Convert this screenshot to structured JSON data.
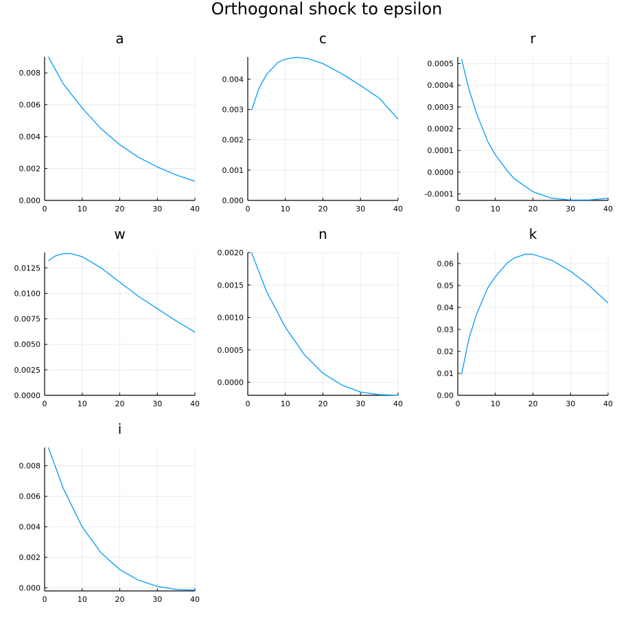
{
  "title": "Orthogonal shock to epsilon",
  "colors": {
    "line": "#009af9",
    "grid": "#e6e6e6",
    "axis": "#000000"
  },
  "chart_data": [
    {
      "type": "line",
      "title": "a",
      "grid": true,
      "xlim": [
        0,
        40
      ],
      "ylim": [
        0,
        0.009
      ],
      "xticks": [
        0,
        10,
        20,
        30,
        40
      ],
      "xtick_labels": [
        "0",
        "10",
        "20",
        "30",
        "40"
      ],
      "yticks": [
        0,
        0.002,
        0.004,
        0.006,
        0.008
      ],
      "ytick_labels": [
        "0.000",
        "0.002",
        "0.004",
        "0.006",
        "0.008"
      ],
      "x": [
        1,
        5,
        10,
        15,
        20,
        25,
        30,
        35,
        40
      ],
      "y": [
        0.009,
        0.0073,
        0.0058,
        0.0045,
        0.0035,
        0.0027,
        0.0021,
        0.0016,
        0.0012
      ]
    },
    {
      "type": "line",
      "title": "c",
      "grid": true,
      "xlim": [
        0,
        40
      ],
      "ylim": [
        0,
        0.00473
      ],
      "xticks": [
        0,
        10,
        20,
        30,
        40
      ],
      "xtick_labels": [
        "0",
        "10",
        "20",
        "30",
        "40"
      ],
      "yticks": [
        0,
        0.001,
        0.002,
        0.003,
        0.004
      ],
      "ytick_labels": [
        "0.000",
        "0.001",
        "0.002",
        "0.003",
        "0.004"
      ],
      "x": [
        1,
        3,
        5,
        8,
        10,
        13,
        16,
        20,
        25,
        30,
        35,
        40
      ],
      "y": [
        0.00297,
        0.0037,
        0.00415,
        0.00455,
        0.00466,
        0.00472,
        0.00468,
        0.00451,
        0.00418,
        0.00379,
        0.00337,
        0.00268
      ]
    },
    {
      "type": "line",
      "title": "r",
      "grid": true,
      "xlim": [
        0,
        40
      ],
      "ylim": [
        -0.00013,
        0.00053
      ],
      "xticks": [
        0,
        10,
        20,
        30,
        40
      ],
      "xtick_labels": [
        "0",
        "10",
        "20",
        "30",
        "40"
      ],
      "yticks": [
        -0.0001,
        0,
        0.0001,
        0.0002,
        0.0003,
        0.0004,
        0.0005
      ],
      "ytick_labels": [
        "-0.0001",
        "0.0000",
        "0.0001",
        "0.0002",
        "0.0003",
        "0.0004",
        "0.0005"
      ],
      "x": [
        1,
        3,
        5,
        8,
        10,
        13,
        15,
        20,
        25,
        30,
        35,
        40
      ],
      "y": [
        0.00052,
        0.00038,
        0.00027,
        0.00014,
        8e-05,
        1e-05,
        -3e-05,
        -9e-05,
        -0.00012,
        -0.000128,
        -0.000128,
        -0.00012
      ]
    },
    {
      "type": "line",
      "title": "w",
      "grid": true,
      "xlim": [
        0,
        40
      ],
      "ylim": [
        0,
        0.014
      ],
      "xticks": [
        0,
        10,
        20,
        30,
        40
      ],
      "xtick_labels": [
        "0",
        "10",
        "20",
        "30",
        "40"
      ],
      "yticks": [
        0,
        0.0025,
        0.005,
        0.0075,
        0.01,
        0.0125
      ],
      "ytick_labels": [
        "0.0000",
        "0.0025",
        "0.0050",
        "0.0075",
        "0.0100",
        "0.0125"
      ],
      "x": [
        1,
        3,
        5,
        7,
        10,
        15,
        20,
        25,
        30,
        35,
        40
      ],
      "y": [
        0.0132,
        0.0137,
        0.0139,
        0.0139,
        0.0136,
        0.0125,
        0.0111,
        0.0097,
        0.0085,
        0.0073,
        0.0062
      ]
    },
    {
      "type": "line",
      "title": "n",
      "grid": true,
      "xlim": [
        0,
        40
      ],
      "ylim": [
        -0.0002,
        0.002
      ],
      "xticks": [
        0,
        10,
        20,
        30,
        40
      ],
      "xtick_labels": [
        "0",
        "10",
        "20",
        "30",
        "40"
      ],
      "yticks": [
        0,
        0.0005,
        0.001,
        0.0015,
        0.002
      ],
      "ytick_labels": [
        "0.0000",
        "0.0005",
        "0.0010",
        "0.0015",
        "0.0020"
      ],
      "x": [
        1,
        5,
        10,
        15,
        20,
        25,
        30,
        35,
        40
      ],
      "y": [
        0.002,
        0.0014,
        0.00085,
        0.00043,
        0.00014,
        -4e-05,
        -0.00015,
        -0.00019,
        -0.0002
      ]
    },
    {
      "type": "line",
      "title": "k",
      "grid": true,
      "xlim": [
        0,
        40
      ],
      "ylim": [
        0,
        0.065
      ],
      "xticks": [
        0,
        10,
        20,
        30,
        40
      ],
      "xtick_labels": [
        "0",
        "10",
        "20",
        "30",
        "40"
      ],
      "yticks": [
        0,
        0.01,
        0.02,
        0.03,
        0.04,
        0.05,
        0.06
      ],
      "ytick_labels": [
        "0.00",
        "0.01",
        "0.02",
        "0.03",
        "0.04",
        "0.05",
        "0.06"
      ],
      "x": [
        1,
        3,
        5,
        8,
        10,
        13,
        15,
        18,
        20,
        25,
        30,
        35,
        40
      ],
      "y": [
        0.0095,
        0.026,
        0.037,
        0.049,
        0.054,
        0.06,
        0.0625,
        0.0643,
        0.0642,
        0.0615,
        0.0565,
        0.05,
        0.042
      ]
    },
    {
      "type": "line",
      "title": "i",
      "grid": true,
      "xlim": [
        0,
        40
      ],
      "ylim": [
        -0.0002,
        0.0092
      ],
      "xticks": [
        0,
        10,
        20,
        30,
        40
      ],
      "xtick_labels": [
        "0",
        "10",
        "20",
        "30",
        "40"
      ],
      "yticks": [
        0,
        0.002,
        0.004,
        0.006,
        0.008
      ],
      "ytick_labels": [
        "0.000",
        "0.002",
        "0.004",
        "0.006",
        "0.008"
      ],
      "x": [
        1,
        5,
        10,
        15,
        20,
        25,
        30,
        35,
        40
      ],
      "y": [
        0.0092,
        0.0065,
        0.004,
        0.0023,
        0.0012,
        0.0005,
        0.0001,
        -0.0001,
        -0.00015
      ]
    }
  ]
}
